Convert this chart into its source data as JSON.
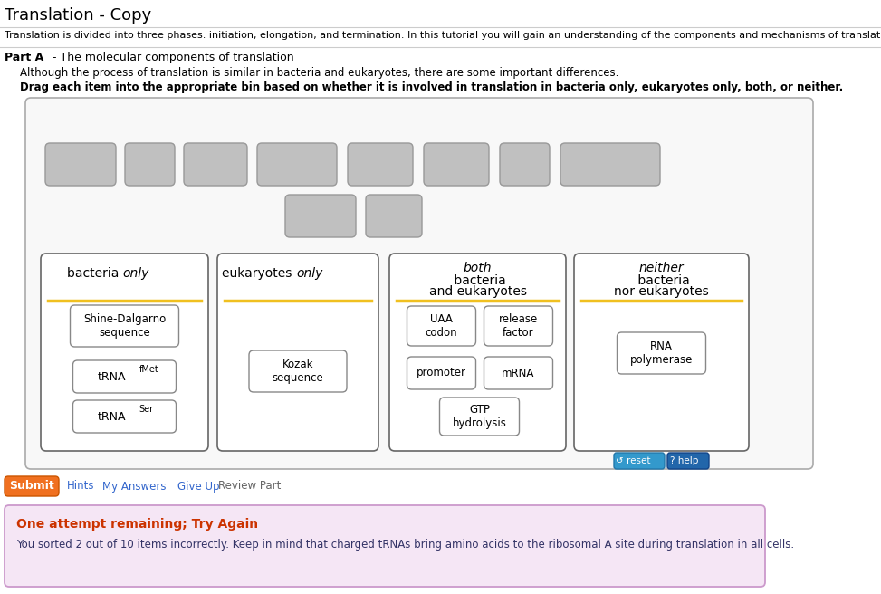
{
  "title": "Translation - Copy",
  "subtitle": "Translation is divided into three phases: initiation, elongation, and termination. In this tutorial you will gain an understanding of the components and mechanisms of translation.",
  "part_label": "Part A",
  "part_title": " - The molecular components of translation",
  "part_desc1": "Although the process of translation is similar in bacteria and eukaryotes, there are some important differences.",
  "part_desc2": "Drag each item into the appropriate bin based on whether it is involved in translation in bacteria only, eukaryotes only, both, or neither.",
  "bg_color": "#ffffff",
  "tile_color": "#c0c0c0",
  "tile_edge": "#999999",
  "bin_edge": "#666666",
  "bin_bg": "#ffffff",
  "bin_title_line": "#f0c020",
  "item_edge": "#888888",
  "item_bg": "#ffffff",
  "outer_box_color": "#aaaaaa",
  "reset_bg": "#3399cc",
  "help_bg": "#2266aa",
  "submit_bg": "#f07020",
  "feedback_bg": "#f5e6f5",
  "feedback_border": "#cc99cc",
  "feedback_title_color": "#cc3300",
  "feedback_body_color": "#333366",
  "link_color": "#3366cc"
}
